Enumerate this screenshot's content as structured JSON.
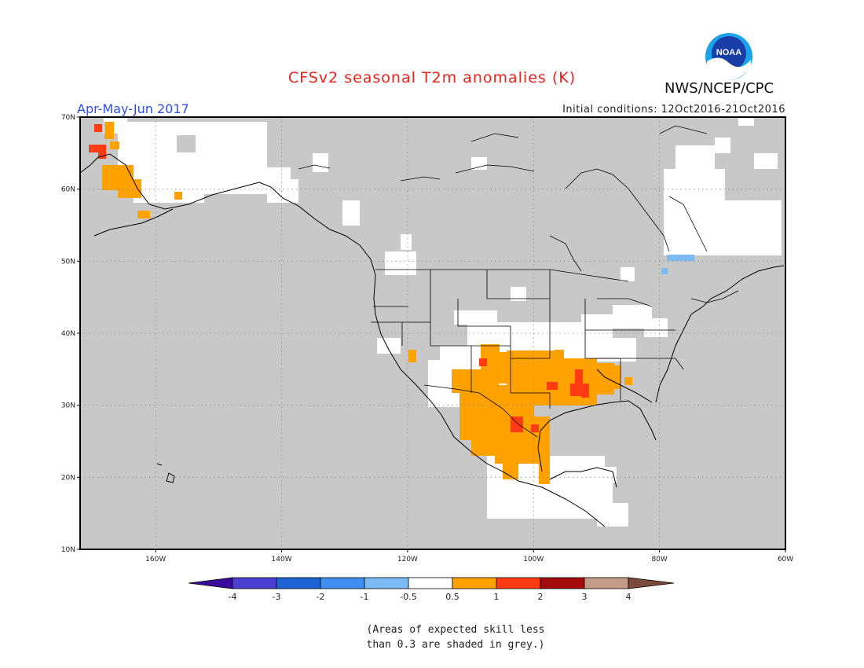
{
  "title": "CFSv2 seasonal T2m anomalies (K)",
  "agency": "NWS/NCEP/CPC",
  "logo_text": "NOAA",
  "season": "Apr-May-Jun 2017",
  "initial_conditions": "Initial conditions: 12Oct2016-21Oct2016",
  "map": {
    "lon_range": [
      -172,
      -60
    ],
    "lat_range": [
      10,
      70
    ],
    "lon_ticks": [
      "160W",
      "140W",
      "120W",
      "100W",
      "80W",
      "60W"
    ],
    "lat_ticks": [
      "10N",
      "20N",
      "30N",
      "40N",
      "50N",
      "60N",
      "70N"
    ],
    "grid": "dotted",
    "background_color": "#c8c8c8"
  },
  "legend": {
    "levels": [
      "-4",
      "-3",
      "-2",
      "-1",
      "-0.5",
      "0.5",
      "1",
      "2",
      "3",
      "4"
    ],
    "colors": [
      "#3a0c9c",
      "#4b3fd1",
      "#1f62d4",
      "#3f8ef0",
      "#7cbaf4",
      "#ffffff",
      "#ffa200",
      "#ff3b13",
      "#a40b0b",
      "#c49a89",
      "#7a4a3a"
    ]
  },
  "note": [
    "(Areas of expected skill less",
    "than 0.3 are shaded in grey.)"
  ]
}
